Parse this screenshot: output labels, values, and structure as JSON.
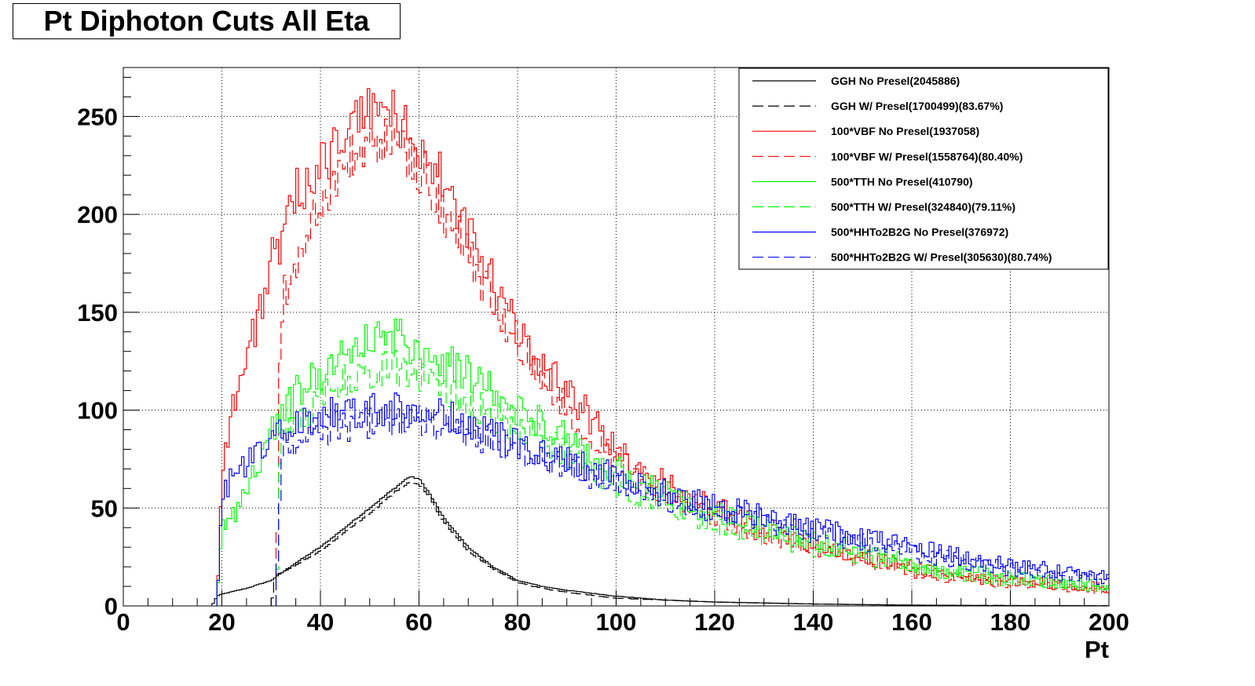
{
  "title": "Pt Diphoton Cuts All Eta",
  "chart_data": {
    "type": "line",
    "title": "Pt Diphoton Cuts All Eta",
    "xlabel": "Pt",
    "ylabel": "",
    "xlim": [
      0,
      200
    ],
    "ylim": [
      0,
      275
    ],
    "xticks": [
      0,
      20,
      40,
      60,
      80,
      100,
      120,
      140,
      160,
      180,
      200
    ],
    "yticks": [
      0,
      50,
      100,
      150,
      200,
      250
    ],
    "grid": true,
    "legend_position": "top-right",
    "series": [
      {
        "name": "GGH No Presel(2045886)",
        "color": "#000000",
        "dash": false,
        "points": [
          [
            18,
            0
          ],
          [
            19,
            5
          ],
          [
            20,
            6
          ],
          [
            25,
            9
          ],
          [
            30,
            13
          ],
          [
            35,
            22
          ],
          [
            40,
            30
          ],
          [
            45,
            40
          ],
          [
            50,
            50
          ],
          [
            55,
            60
          ],
          [
            58,
            66
          ],
          [
            60,
            65
          ],
          [
            62,
            58
          ],
          [
            65,
            45
          ],
          [
            70,
            30
          ],
          [
            75,
            20
          ],
          [
            80,
            13
          ],
          [
            85,
            10
          ],
          [
            90,
            8
          ],
          [
            100,
            5
          ],
          [
            110,
            3
          ],
          [
            120,
            2
          ],
          [
            140,
            1
          ],
          [
            160,
            0.4
          ],
          [
            180,
            0.2
          ],
          [
            200,
            0.1
          ]
        ]
      },
      {
        "name": "GGH W/ Presel(1700499)(83.67%)",
        "color": "#000000",
        "dash": true,
        "points": [
          [
            30,
            0
          ],
          [
            31,
            16
          ],
          [
            33,
            18
          ],
          [
            35,
            21
          ],
          [
            40,
            28
          ],
          [
            45,
            38
          ],
          [
            50,
            47
          ],
          [
            55,
            58
          ],
          [
            58,
            63
          ],
          [
            60,
            62
          ],
          [
            62,
            56
          ],
          [
            65,
            43
          ],
          [
            70,
            28
          ],
          [
            75,
            19
          ],
          [
            80,
            12
          ],
          [
            85,
            9
          ],
          [
            90,
            7
          ],
          [
            100,
            4
          ],
          [
            110,
            3
          ],
          [
            120,
            2
          ],
          [
            140,
            1
          ],
          [
            160,
            0.4
          ],
          [
            180,
            0.2
          ],
          [
            200,
            0.1
          ]
        ]
      },
      {
        "name": "100*VBF No Presel(1937058)",
        "color": "#ff0000",
        "dash": false,
        "points": [
          [
            19,
            0
          ],
          [
            20,
            70
          ],
          [
            22,
            100
          ],
          [
            25,
            125
          ],
          [
            28,
            155
          ],
          [
            30,
            175
          ],
          [
            33,
            190
          ],
          [
            35,
            210
          ],
          [
            38,
            220
          ],
          [
            40,
            225
          ],
          [
            45,
            240
          ],
          [
            50,
            255
          ],
          [
            53,
            255
          ],
          [
            55,
            250
          ],
          [
            60,
            235
          ],
          [
            63,
            225
          ],
          [
            65,
            215
          ],
          [
            70,
            190
          ],
          [
            75,
            165
          ],
          [
            80,
            140
          ],
          [
            85,
            125
          ],
          [
            90,
            110
          ],
          [
            95,
            95
          ],
          [
            100,
            80
          ],
          [
            105,
            70
          ],
          [
            110,
            62
          ],
          [
            115,
            55
          ],
          [
            120,
            50
          ],
          [
            130,
            40
          ],
          [
            140,
            32
          ],
          [
            150,
            25
          ],
          [
            160,
            20
          ],
          [
            170,
            15
          ],
          [
            180,
            13
          ],
          [
            190,
            11
          ],
          [
            200,
            9
          ]
        ]
      },
      {
        "name": "100*VBF W/ Presel(1558764)(80.40%)",
        "color": "#ff0000",
        "dash": true,
        "points": [
          [
            31,
            0
          ],
          [
            32,
            155
          ],
          [
            34,
            165
          ],
          [
            36,
            180
          ],
          [
            38,
            195
          ],
          [
            40,
            205
          ],
          [
            45,
            225
          ],
          [
            50,
            235
          ],
          [
            53,
            238
          ],
          [
            55,
            235
          ],
          [
            60,
            225
          ],
          [
            63,
            212
          ],
          [
            65,
            200
          ],
          [
            70,
            180
          ],
          [
            75,
            155
          ],
          [
            80,
            135
          ],
          [
            85,
            118
          ],
          [
            90,
            102
          ],
          [
            95,
            88
          ],
          [
            100,
            76
          ],
          [
            105,
            66
          ],
          [
            110,
            58
          ],
          [
            115,
            52
          ],
          [
            120,
            46
          ],
          [
            130,
            37
          ],
          [
            140,
            30
          ],
          [
            150,
            23
          ],
          [
            160,
            18
          ],
          [
            170,
            14
          ],
          [
            180,
            12
          ],
          [
            190,
            10
          ],
          [
            200,
            8
          ]
        ]
      },
      {
        "name": "500*TTH No Presel(410790)",
        "color": "#00ff00",
        "dash": false,
        "points": [
          [
            19,
            0
          ],
          [
            20,
            40
          ],
          [
            22,
            45
          ],
          [
            25,
            60
          ],
          [
            28,
            75
          ],
          [
            30,
            90
          ],
          [
            33,
            100
          ],
          [
            35,
            108
          ],
          [
            40,
            120
          ],
          [
            45,
            130
          ],
          [
            50,
            135
          ],
          [
            55,
            138
          ],
          [
            60,
            132
          ],
          [
            65,
            125
          ],
          [
            70,
            118
          ],
          [
            75,
            110
          ],
          [
            80,
            100
          ],
          [
            85,
            95
          ],
          [
            90,
            85
          ],
          [
            95,
            75
          ],
          [
            100,
            70
          ],
          [
            105,
            62
          ],
          [
            110,
            58
          ],
          [
            115,
            52
          ],
          [
            120,
            47
          ],
          [
            130,
            40
          ],
          [
            140,
            33
          ],
          [
            150,
            28
          ],
          [
            160,
            22
          ],
          [
            170,
            18
          ],
          [
            180,
            15
          ],
          [
            190,
            12
          ],
          [
            200,
            10
          ]
        ]
      },
      {
        "name": "500*TTH W/ Presel(324840)(79.11%)",
        "color": "#00ff00",
        "dash": true,
        "points": [
          [
            31,
            0
          ],
          [
            32,
            88
          ],
          [
            35,
            95
          ],
          [
            40,
            105
          ],
          [
            45,
            115
          ],
          [
            50,
            120
          ],
          [
            55,
            122
          ],
          [
            60,
            118
          ],
          [
            65,
            112
          ],
          [
            70,
            105
          ],
          [
            75,
            98
          ],
          [
            80,
            90
          ],
          [
            85,
            85
          ],
          [
            90,
            78
          ],
          [
            95,
            70
          ],
          [
            100,
            62
          ],
          [
            105,
            56
          ],
          [
            110,
            52
          ],
          [
            115,
            47
          ],
          [
            120,
            42
          ],
          [
            130,
            36
          ],
          [
            140,
            30
          ],
          [
            150,
            25
          ],
          [
            160,
            20
          ],
          [
            170,
            16
          ],
          [
            180,
            13
          ],
          [
            190,
            11
          ],
          [
            200,
            9
          ]
        ]
      },
      {
        "name": "500*HHTo2B2G No Presel(376972)",
        "color": "#0000ff",
        "dash": false,
        "points": [
          [
            19,
            0
          ],
          [
            20,
            55
          ],
          [
            22,
            65
          ],
          [
            25,
            73
          ],
          [
            28,
            80
          ],
          [
            30,
            85
          ],
          [
            33,
            90
          ],
          [
            35,
            93
          ],
          [
            40,
            97
          ],
          [
            45,
            99
          ],
          [
            50,
            100
          ],
          [
            55,
            100
          ],
          [
            60,
            99
          ],
          [
            65,
            97
          ],
          [
            70,
            93
          ],
          [
            75,
            88
          ],
          [
            80,
            82
          ],
          [
            85,
            78
          ],
          [
            90,
            74
          ],
          [
            95,
            70
          ],
          [
            100,
            66
          ],
          [
            105,
            62
          ],
          [
            110,
            58
          ],
          [
            115,
            55
          ],
          [
            120,
            51
          ],
          [
            130,
            46
          ],
          [
            140,
            40
          ],
          [
            150,
            35
          ],
          [
            160,
            30
          ],
          [
            170,
            25
          ],
          [
            180,
            21
          ],
          [
            190,
            18
          ],
          [
            200,
            15
          ]
        ]
      },
      {
        "name": "500*HHTo2B2G W/ Presel(305630)(80.74%)",
        "color": "#0000ff",
        "dash": true,
        "points": [
          [
            31,
            0
          ],
          [
            32,
            80
          ],
          [
            34,
            84
          ],
          [
            36,
            86
          ],
          [
            40,
            90
          ],
          [
            45,
            92
          ],
          [
            50,
            94
          ],
          [
            55,
            95
          ],
          [
            60,
            94
          ],
          [
            65,
            91
          ],
          [
            70,
            88
          ],
          [
            75,
            84
          ],
          [
            80,
            79
          ],
          [
            85,
            75
          ],
          [
            90,
            71
          ],
          [
            95,
            67
          ],
          [
            100,
            63
          ],
          [
            105,
            59
          ],
          [
            110,
            55
          ],
          [
            115,
            52
          ],
          [
            120,
            48
          ],
          [
            130,
            43
          ],
          [
            140,
            37
          ],
          [
            150,
            32
          ],
          [
            160,
            27
          ],
          [
            170,
            23
          ],
          [
            180,
            19
          ],
          [
            190,
            16
          ],
          [
            200,
            13
          ]
        ]
      }
    ]
  }
}
